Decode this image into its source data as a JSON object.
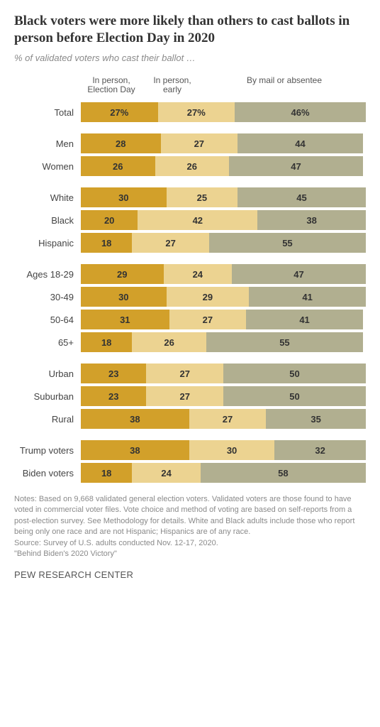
{
  "title": "Black voters were more likely than others to cast ballots in person before Election Day in 2020",
  "subtitle": "% of validated voters who cast their ballot …",
  "legend": [
    "In person,\nElection Day",
    "In person,\nearly",
    "By mail or absentee"
  ],
  "colors": [
    "#d2a02a",
    "#ecd391",
    "#b1af90"
  ],
  "label_color": "#333333",
  "total_row": {
    "label": "Total",
    "values": [
      27,
      27,
      46
    ],
    "suffix": "%"
  },
  "groups": [
    [
      {
        "label": "Men",
        "values": [
          28,
          27,
          44
        ]
      },
      {
        "label": "Women",
        "values": [
          26,
          26,
          47
        ]
      }
    ],
    [
      {
        "label": "White",
        "values": [
          30,
          25,
          45
        ]
      },
      {
        "label": "Black",
        "values": [
          20,
          42,
          38
        ]
      },
      {
        "label": "Hispanic",
        "values": [
          18,
          27,
          55
        ]
      }
    ],
    [
      {
        "label": "Ages 18-29",
        "values": [
          29,
          24,
          47
        ]
      },
      {
        "label": "30-49",
        "values": [
          30,
          29,
          41
        ]
      },
      {
        "label": "50-64",
        "values": [
          31,
          27,
          41
        ]
      },
      {
        "label": "65+",
        "values": [
          18,
          26,
          55
        ]
      }
    ],
    [
      {
        "label": "Urban",
        "values": [
          23,
          27,
          50
        ]
      },
      {
        "label": "Suburban",
        "values": [
          23,
          27,
          50
        ]
      },
      {
        "label": "Rural",
        "values": [
          38,
          27,
          35
        ]
      }
    ],
    [
      {
        "label": "Trump voters",
        "values": [
          38,
          30,
          32
        ]
      },
      {
        "label": "Biden voters",
        "values": [
          18,
          24,
          58
        ]
      }
    ]
  ],
  "notes": "Notes: Based on 9,668 validated general election voters. Validated voters are those found to have voted in commercial voter files. Vote choice and method of voting are based on self-reports from a post-election survey. See Methodology for details. White and Black adults include those who report being only one race and are not Hispanic; Hispanics are of any race.",
  "source": "Source: Survey of U.S. adults conducted Nov. 12-17, 2020.",
  "report": "\"Behind Biden's 2020 Victory\"",
  "footer": "PEW RESEARCH CENTER"
}
